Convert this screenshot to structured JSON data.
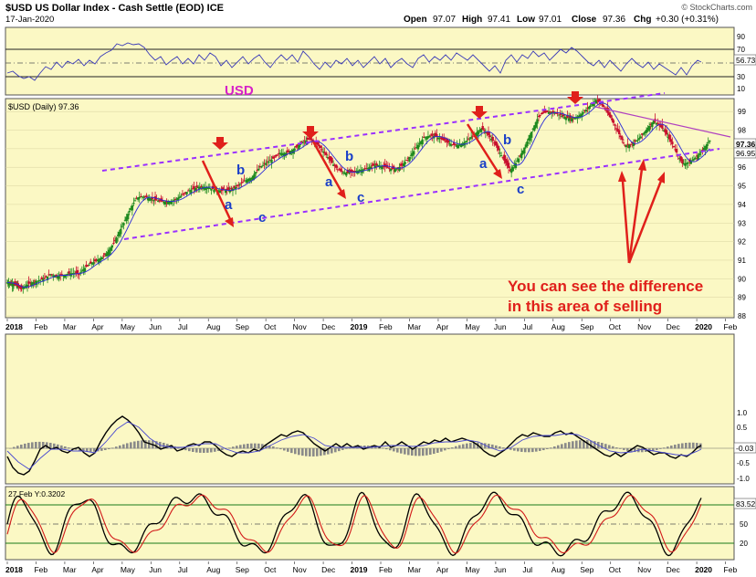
{
  "header": {
    "title": "$USD US Dollar Index - Cash Settle (EOD) ICE",
    "date": "17-Jan-2020",
    "open_label": "Open",
    "open": "97.07",
    "high_label": "High",
    "high": "97.41",
    "low_label": "Low",
    "low": "97.01",
    "close_label": "Close",
    "close": "97.36",
    "chg_label": "Chg",
    "chg": "+0.30 (+0.31%)",
    "brand": "© StockCharts.com"
  },
  "colors": {
    "panel_bg": "#fbf8c4",
    "up_candle": "#1f8a1f",
    "down_candle": "#c8102e",
    "channel": "#9b30ff",
    "annotation_red": "#e0201b",
    "wave_label": "#1a3fc8",
    "usd_label": "#d622c8",
    "ma_line": "#2a2ad8"
  },
  "rsi_panel": {
    "ticks": [
      "90",
      "70",
      "30",
      "10"
    ],
    "value": "56.73"
  },
  "price_panel": {
    "legend": "$USD (Daily) 97.36",
    "usd_label": "USD",
    "last_price": "97.36",
    "ma_value": "96.95",
    "wave_labels": [
      "a",
      "b",
      "c",
      "a",
      "b",
      "c",
      "a",
      "b",
      "c"
    ],
    "note_line1": "You can see the difference",
    "note_line2": "in this area of selling"
  },
  "macd_panel": {
    "ticks": [
      "1.0",
      "0.5",
      "-0.5",
      "-1.0"
    ],
    "value": "-0.03"
  },
  "stoch_panel": {
    "legend": "27 Feb Y:0.3202",
    "ticks": [
      "80",
      "50",
      "20"
    ],
    "value": "83.52"
  },
  "x_axis": {
    "labels": [
      "2018",
      "Feb",
      "Mar",
      "Apr",
      "May",
      "Jun",
      "Jul",
      "Aug",
      "Sep",
      "Oct",
      "Nov",
      "Dec",
      "2019",
      "Feb",
      "Mar",
      "Apr",
      "May",
      "Jun",
      "Jul",
      "Aug",
      "Sep",
      "Oct",
      "Nov",
      "Dec",
      "2020",
      "Feb"
    ]
  },
  "chart_data": {
    "type": "candlestick",
    "title": "$USD US Dollar Index - Cash Settle (EOD) ICE",
    "ylabel": "",
    "ylim": [
      88,
      99.5
    ],
    "y_ticks": [
      88,
      89,
      90,
      91,
      92,
      93,
      94,
      95,
      96,
      97,
      98,
      99
    ],
    "x_start": "2018-01",
    "x_end": "2020-02",
    "monthly_close": [
      [
        "2018-01",
        89.1
      ],
      [
        "2018-02",
        90.6
      ],
      [
        "2018-03",
        89.9
      ],
      [
        "2018-04",
        91.8
      ],
      [
        "2018-05",
        94.0
      ],
      [
        "2018-06",
        94.5
      ],
      [
        "2018-07",
        94.5
      ],
      [
        "2018-08",
        95.1
      ],
      [
        "2018-09",
        95.1
      ],
      [
        "2018-10",
        97.1
      ],
      [
        "2018-11",
        97.2
      ],
      [
        "2018-12",
        96.2
      ],
      [
        "2019-01",
        95.6
      ],
      [
        "2019-02",
        96.2
      ],
      [
        "2019-03",
        97.3
      ],
      [
        "2019-04",
        97.5
      ],
      [
        "2019-05",
        97.8
      ],
      [
        "2019-06",
        96.1
      ],
      [
        "2019-07",
        98.5
      ],
      [
        "2019-08",
        98.9
      ],
      [
        "2019-09",
        99.4
      ],
      [
        "2019-10",
        97.4
      ],
      [
        "2019-11",
        98.3
      ],
      [
        "2019-12",
        96.4
      ],
      [
        "2020-01",
        97.36
      ]
    ],
    "channel_upper": [
      [
        "2018-08",
        97.1
      ],
      [
        "2019-12",
        100.0
      ]
    ],
    "channel_lower": [
      [
        "2018-05",
        92.0
      ],
      [
        "2020-01",
        97.2
      ]
    ],
    "downtrend_line": [
      [
        "2019-09",
        99.2
      ],
      [
        "2020-02",
        97.7
      ]
    ]
  }
}
